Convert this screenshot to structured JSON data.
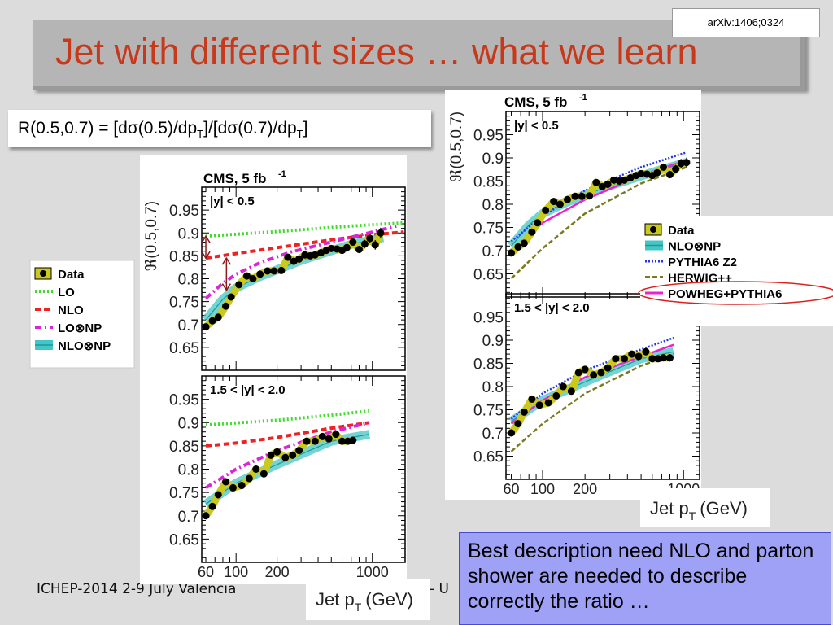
{
  "slide": {
    "title": "Jet with different sizes … what we learn",
    "reference": "arXiv:1406;0324",
    "formula": {
      "part1": "R(0.5,0.7) = [dσ(0.5)/dp",
      "sub1": "T",
      "part2": "]/[dσ(0.7)/dp",
      "sub2": "T",
      "part3": "]"
    },
    "footer": "ICHEP-2014 2-9 July Valencia",
    "footer_partial": "- U",
    "note": "Best description need NLO and parton shower are needed to describe correctly the ratio …"
  },
  "colors": {
    "title": "#c8381b",
    "note_bg": "#9ea1f6",
    "highlight_ellipse": "#dd2222"
  },
  "chart_data": [
    {
      "type": "line",
      "figure": "left",
      "experiment_label": "CMS, 5 fb",
      "experiment_label_sup": "-1",
      "ylabel": "ℜ(0.5,0.7)",
      "xlabel": "Jet p",
      "xlabel_sub": "T",
      "xlabel_unit": "(GeV)",
      "xscale": "log",
      "xlim": [
        56,
        1740
      ],
      "ylim": [
        0.6,
        1.0
      ],
      "xticks": [
        "60",
        "100",
        "200",
        "1000"
      ],
      "yticks": [
        "0.65",
        "0.7",
        "0.75",
        "0.8",
        "0.85",
        "0.9",
        "0.95"
      ],
      "legend": [
        {
          "name": "Data",
          "key": "data"
        },
        {
          "name": "LO",
          "key": "lo"
        },
        {
          "name": "NLO",
          "key": "nlo"
        },
        {
          "name": "LO⊗NP",
          "key": "lonp"
        },
        {
          "name": "NLO⊗NP",
          "key": "nlonp"
        }
      ],
      "panels": [
        {
          "region": "|y| < 0.5",
          "series": {
            "lo": [
              [
                60,
                0.893
              ],
              [
                200,
                0.903
              ],
              [
                500,
                0.912
              ],
              [
                1000,
                0.918
              ],
              [
                1700,
                0.922
              ]
            ],
            "nlo": [
              [
                60,
                0.845
              ],
              [
                100,
                0.855
              ],
              [
                200,
                0.868
              ],
              [
                500,
                0.885
              ],
              [
                1000,
                0.896
              ],
              [
                1700,
                0.902
              ]
            ],
            "lonp": [
              [
                60,
                0.757
              ],
              [
                80,
                0.79
              ],
              [
                100,
                0.81
              ],
              [
                150,
                0.835
              ],
              [
                250,
                0.858
              ],
              [
                400,
                0.873
              ],
              [
                800,
                0.895
              ],
              [
                1500,
                0.915
              ]
            ],
            "nlonp": [
              [
                60,
                0.71
              ],
              [
                80,
                0.755
              ],
              [
                100,
                0.78
              ],
              [
                150,
                0.805
              ],
              [
                300,
                0.84
              ],
              [
                700,
                0.875
              ],
              [
                1200,
                0.89
              ]
            ],
            "data": [
              [
                60,
                0.695
              ],
              [
                67,
                0.708
              ],
              [
                74,
                0.716
              ],
              [
                84,
                0.74
              ],
              [
                92,
                0.76
              ],
              [
                105,
                0.787
              ],
              [
                120,
                0.806
              ],
              [
                133,
                0.8
              ],
              [
                150,
                0.81
              ],
              [
                170,
                0.817
              ],
              [
                190,
                0.817
              ],
              [
                215,
                0.818
              ],
              [
                240,
                0.847
              ],
              [
                265,
                0.838
              ],
              [
                290,
                0.843
              ],
              [
                320,
                0.852
              ],
              [
                350,
                0.85
              ],
              [
                380,
                0.852
              ],
              [
                420,
                0.857
              ],
              [
                460,
                0.862
              ],
              [
                500,
                0.866
              ],
              [
                550,
                0.865
              ],
              [
                600,
                0.862
              ],
              [
                650,
                0.868
              ],
              [
                720,
                0.88
              ],
              [
                800,
                0.864
              ],
              [
                880,
                0.876
              ],
              [
                960,
                0.888
              ],
              [
                1050,
                0.874
              ],
              [
                1150,
                0.9
              ]
            ]
          }
        },
        {
          "region": "1.5 < |y| < 2.0",
          "series": {
            "lo": [
              [
                60,
                0.895
              ],
              [
                200,
                0.905
              ],
              [
                500,
                0.916
              ],
              [
                950,
                0.925
              ]
            ],
            "nlo": [
              [
                60,
                0.85
              ],
              [
                100,
                0.856
              ],
              [
                200,
                0.868
              ],
              [
                500,
                0.888
              ],
              [
                950,
                0.9
              ]
            ],
            "lonp": [
              [
                60,
                0.76
              ],
              [
                100,
                0.8
              ],
              [
                200,
                0.84
              ],
              [
                500,
                0.88
              ],
              [
                950,
                0.9
              ]
            ],
            "nlonp": [
              [
                60,
                0.725
              ],
              [
                100,
                0.77
              ],
              [
                200,
                0.81
              ],
              [
                500,
                0.86
              ],
              [
                950,
                0.875
              ]
            ],
            "data": [
              [
                60,
                0.7
              ],
              [
                67,
                0.72
              ],
              [
                74,
                0.745
              ],
              [
                84,
                0.773
              ],
              [
                95,
                0.76
              ],
              [
                110,
                0.765
              ],
              [
                125,
                0.78
              ],
              [
                140,
                0.8
              ],
              [
                160,
                0.79
              ],
              [
                180,
                0.83
              ],
              [
                200,
                0.837
              ],
              [
                230,
                0.825
              ],
              [
                260,
                0.83
              ],
              [
                290,
                0.84
              ],
              [
                330,
                0.86
              ],
              [
                380,
                0.86
              ],
              [
                430,
                0.87
              ],
              [
                480,
                0.865
              ],
              [
                540,
                0.875
              ],
              [
                600,
                0.86
              ],
              [
                660,
                0.86
              ],
              [
                720,
                0.862
              ]
            ]
          }
        }
      ]
    },
    {
      "type": "line",
      "figure": "right",
      "experiment_label": "CMS, 5 fb",
      "experiment_label_sup": "-1",
      "ylabel": "ℜ(0.5,0.7)",
      "xlabel": "Jet p",
      "xlabel_sub": "T",
      "xlabel_unit": "(GeV)",
      "xscale": "log",
      "xlim": [
        55,
        1300
      ],
      "ylim": [
        0.6,
        1.0
      ],
      "xticks": [
        "60",
        "100",
        "200",
        "1000"
      ],
      "yticks": [
        "0.65",
        "0.7",
        "0.75",
        "0.8",
        "0.85",
        "0.9",
        "0.95"
      ],
      "legend": [
        {
          "name": "Data",
          "key": "data"
        },
        {
          "name": "NLO⊗NP",
          "key": "nlonp"
        },
        {
          "name": "PYTHIA6 Z2",
          "key": "pythia"
        },
        {
          "name": "HERWIG++",
          "key": "herwig"
        },
        {
          "name": "POWHEG+PYTHIA6",
          "key": "powheg"
        }
      ],
      "highlighted_entry": "POWHEG+PYTHIA6",
      "panels": [
        {
          "region": "|y| < 0.5",
          "series": {
            "nlonp": [
              [
                60,
                0.71
              ],
              [
                80,
                0.755
              ],
              [
                100,
                0.78
              ],
              [
                150,
                0.805
              ],
              [
                300,
                0.84
              ],
              [
                700,
                0.875
              ],
              [
                1050,
                0.89
              ]
            ],
            "pythia": [
              [
                60,
                0.72
              ],
              [
                100,
                0.775
              ],
              [
                200,
                0.83
              ],
              [
                500,
                0.88
              ],
              [
                1050,
                0.912
              ]
            ],
            "herwig": [
              [
                60,
                0.64
              ],
              [
                100,
                0.705
              ],
              [
                200,
                0.78
              ],
              [
                500,
                0.845
              ],
              [
                1050,
                0.88
              ]
            ],
            "powheg": [
              [
                60,
                0.7
              ],
              [
                100,
                0.76
              ],
              [
                200,
                0.81
              ],
              [
                500,
                0.862
              ],
              [
                1050,
                0.895
              ]
            ],
            "data": [
              [
                60,
                0.695
              ],
              [
                67,
                0.708
              ],
              [
                74,
                0.716
              ],
              [
                84,
                0.74
              ],
              [
                92,
                0.76
              ],
              [
                105,
                0.787
              ],
              [
                120,
                0.806
              ],
              [
                133,
                0.8
              ],
              [
                150,
                0.81
              ],
              [
                170,
                0.817
              ],
              [
                190,
                0.817
              ],
              [
                215,
                0.818
              ],
              [
                240,
                0.847
              ],
              [
                265,
                0.838
              ],
              [
                290,
                0.843
              ],
              [
                320,
                0.852
              ],
              [
                350,
                0.85
              ],
              [
                380,
                0.852
              ],
              [
                420,
                0.857
              ],
              [
                460,
                0.862
              ],
              [
                500,
                0.866
              ],
              [
                550,
                0.865
              ],
              [
                600,
                0.862
              ],
              [
                650,
                0.868
              ],
              [
                720,
                0.88
              ],
              [
                800,
                0.864
              ],
              [
                880,
                0.876
              ],
              [
                960,
                0.888
              ],
              [
                1050,
                0.89
              ]
            ]
          }
        },
        {
          "region": "1.5 < |y| < 2.0",
          "series": {
            "nlonp": [
              [
                60,
                0.725
              ],
              [
                100,
                0.77
              ],
              [
                200,
                0.81
              ],
              [
                500,
                0.86
              ],
              [
                850,
                0.875
              ]
            ],
            "pythia": [
              [
                60,
                0.73
              ],
              [
                100,
                0.785
              ],
              [
                200,
                0.835
              ],
              [
                500,
                0.88
              ],
              [
                850,
                0.905
              ]
            ],
            "herwig": [
              [
                60,
                0.66
              ],
              [
                100,
                0.72
              ],
              [
                200,
                0.785
              ],
              [
                500,
                0.845
              ],
              [
                850,
                0.87
              ]
            ],
            "powheg": [
              [
                60,
                0.72
              ],
              [
                100,
                0.77
              ],
              [
                200,
                0.82
              ],
              [
                500,
                0.865
              ],
              [
                850,
                0.89
              ]
            ],
            "data": [
              [
                60,
                0.7
              ],
              [
                67,
                0.72
              ],
              [
                74,
                0.745
              ],
              [
                84,
                0.773
              ],
              [
                95,
                0.76
              ],
              [
                110,
                0.765
              ],
              [
                125,
                0.78
              ],
              [
                140,
                0.8
              ],
              [
                160,
                0.79
              ],
              [
                180,
                0.83
              ],
              [
                200,
                0.837
              ],
              [
                230,
                0.825
              ],
              [
                260,
                0.83
              ],
              [
                290,
                0.84
              ],
              [
                330,
                0.86
              ],
              [
                380,
                0.86
              ],
              [
                430,
                0.87
              ],
              [
                480,
                0.865
              ],
              [
                540,
                0.875
              ],
              [
                600,
                0.86
              ],
              [
                660,
                0.86
              ],
              [
                720,
                0.862
              ],
              [
                800,
                0.862
              ]
            ]
          }
        }
      ]
    }
  ]
}
